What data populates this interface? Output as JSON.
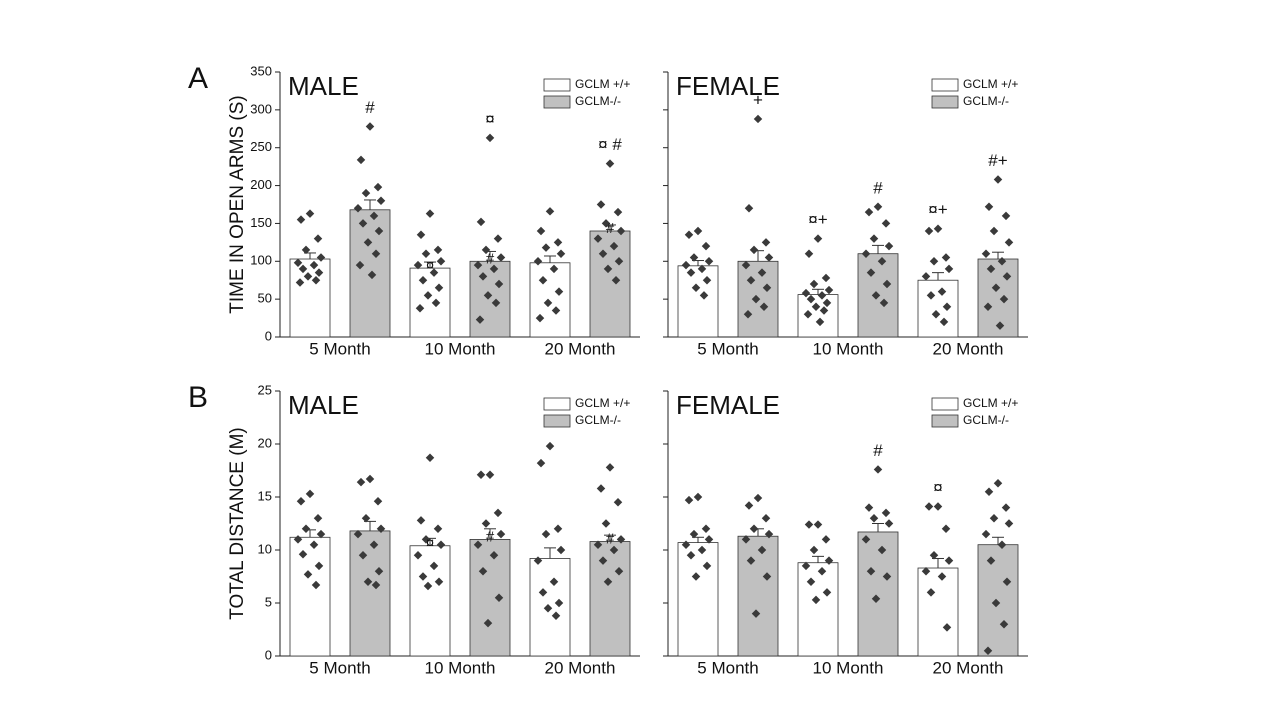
{
  "chart_data": [
    {
      "type": "bar",
      "panel_label": "A",
      "title": "MALE",
      "ylabel": "TIME IN OPEN ARMS (S)",
      "categories": [
        "5 Month",
        "10 Month",
        "20 Month"
      ],
      "ylim": [
        0,
        350
      ],
      "yticks": [
        0,
        50,
        100,
        150,
        200,
        250,
        300,
        350
      ],
      "ytick_labels": true,
      "series": [
        {
          "name": "GCLM +/+",
          "color": "#ffffff",
          "values": [
            103,
            91,
            98
          ],
          "errors": [
            8,
            8,
            9
          ],
          "points": [
            [
              163,
              155,
              130,
              115,
              105,
              98,
              95,
              90,
              85,
              80,
              75,
              72
            ],
            [
              163,
              135,
              115,
              110,
              100,
              95,
              85,
              75,
              65,
              55,
              45,
              38
            ],
            [
              166,
              140,
              125,
              118,
              110,
              100,
              90,
              75,
              60,
              45,
              35,
              25
            ]
          ],
          "annotations": [
            null,
            null,
            null
          ],
          "inner_annotations": [
            null,
            "¤",
            null
          ]
        },
        {
          "name": "GCLM-/-",
          "color": "#c0c0c0",
          "values": [
            168,
            100,
            140
          ],
          "errors": [
            13,
            13,
            8
          ],
          "points": [
            [
              278,
              234,
              198,
              190,
              180,
              170,
              160,
              150,
              140,
              125,
              110,
              95,
              82
            ],
            [
              263,
              152,
              130,
              115,
              105,
              95,
              90,
              80,
              70,
              55,
              45,
              23
            ],
            [
              229,
              175,
              165,
              150,
              140,
              130,
              120,
              110,
              100,
              90,
              75
            ]
          ],
          "annotations": [
            "#",
            "¤",
            "¤ #"
          ],
          "inner_annotations": [
            null,
            "#",
            "#"
          ]
        }
      ]
    },
    {
      "type": "bar",
      "title": "FEMALE",
      "categories": [
        "5 Month",
        "10 Month",
        "20 Month"
      ],
      "ylim": [
        0,
        350
      ],
      "yticks": [
        0,
        50,
        100,
        150,
        200,
        250,
        300,
        350
      ],
      "ytick_labels": false,
      "series": [
        {
          "name": "GCLM +/+",
          "color": "#ffffff",
          "values": [
            94,
            56,
            75
          ],
          "errors": [
            7,
            7,
            10
          ],
          "points": [
            [
              140,
              135,
              120,
              105,
              100,
              95,
              90,
              85,
              75,
              65,
              55
            ],
            [
              130,
              110,
              78,
              70,
              62,
              58,
              55,
              50,
              45,
              40,
              35,
              30,
              20
            ],
            [
              143,
              140,
              105,
              100,
              90,
              80,
              60,
              55,
              40,
              30,
              20
            ]
          ],
          "annotations": [
            null,
            "¤+",
            "¤+"
          ],
          "inner_annotations": [
            null,
            null,
            null
          ]
        },
        {
          "name": "GCLM-/-",
          "color": "#c0c0c0",
          "values": [
            100,
            110,
            103
          ],
          "errors": [
            14,
            11,
            9
          ],
          "points": [
            [
              288,
              170,
              125,
              115,
              105,
              95,
              85,
              75,
              65,
              50,
              40,
              30
            ],
            [
              172,
              165,
              150,
              130,
              120,
              110,
              100,
              85,
              70,
              55,
              45
            ],
            [
              208,
              172,
              160,
              140,
              125,
              110,
              100,
              90,
              80,
              65,
              50,
              40,
              15
            ]
          ],
          "annotations": [
            "+",
            "#",
            "#+"
          ],
          "inner_annotations": [
            null,
            null,
            null
          ]
        }
      ]
    },
    {
      "type": "bar",
      "panel_label": "B",
      "title": "MALE",
      "ylabel": "TOTAL DISTANCE (M)",
      "categories": [
        "5 Month",
        "10 Month",
        "20 Month"
      ],
      "ylim": [
        0,
        25
      ],
      "yticks": [
        0,
        5,
        10,
        15,
        20,
        25
      ],
      "ytick_labels": true,
      "series": [
        {
          "name": "GCLM +/+",
          "color": "#ffffff",
          "values": [
            11.2,
            10.4,
            9.2
          ],
          "errors": [
            0.7,
            0.7,
            1
          ],
          "points": [
            [
              15.3,
              14.6,
              13,
              12,
              11.5,
              11,
              10.5,
              9.6,
              8.5,
              7.7,
              6.7
            ],
            [
              18.7,
              12.8,
              12,
              11,
              10.5,
              9.5,
              8.5,
              7.5,
              7,
              6.6
            ],
            [
              19.8,
              18.2,
              12,
              11.5,
              10,
              9,
              7,
              6,
              5,
              4.5,
              3.8
            ]
          ],
          "annotations": [
            null,
            null,
            null
          ],
          "inner_annotations": [
            null,
            "¤",
            null
          ]
        },
        {
          "name": "GCLM-/-",
          "color": "#c0c0c0",
          "values": [
            11.8,
            11,
            10.8
          ],
          "errors": [
            0.9,
            1,
            0.6
          ],
          "points": [
            [
              16.7,
              16.4,
              14.6,
              13,
              12,
              11.5,
              10.5,
              9.5,
              8,
              7,
              6.7
            ],
            [
              17.1,
              17.1,
              13.5,
              12.5,
              11.5,
              10.5,
              9.5,
              8,
              5.5,
              3.1
            ],
            [
              17.8,
              15.8,
              14.5,
              12.5,
              11,
              10.5,
              10,
              9,
              8,
              7
            ]
          ],
          "annotations": [
            null,
            null,
            null
          ],
          "inner_annotations": [
            null,
            "#",
            "#"
          ]
        }
      ]
    },
    {
      "type": "bar",
      "title": "FEMALE",
      "categories": [
        "5 Month",
        "10 Month",
        "20 Month"
      ],
      "ylim": [
        0,
        25
      ],
      "yticks": [
        0,
        5,
        10,
        15,
        20,
        25
      ],
      "ytick_labels": false,
      "series": [
        {
          "name": "GCLM +/+",
          "color": "#ffffff",
          "values": [
            10.7,
            8.8,
            8.3
          ],
          "errors": [
            0.5,
            0.6,
            0.9
          ],
          "points": [
            [
              15,
              14.7,
              12,
              11.5,
              11,
              10.5,
              10,
              9.5,
              8.5,
              7.5
            ],
            [
              12.4,
              12.4,
              11,
              10,
              9,
              8.5,
              8,
              7,
              6,
              5.3
            ],
            [
              14.1,
              14.1,
              12,
              9.5,
              9,
              8,
              7.5,
              6,
              2.7
            ]
          ],
          "annotations": [
            null,
            null,
            "¤"
          ],
          "inner_annotations": [
            null,
            null,
            null
          ]
        },
        {
          "name": "GCLM-/-",
          "color": "#c0c0c0",
          "values": [
            11.3,
            11.7,
            10.5
          ],
          "errors": [
            0.7,
            0.8,
            0.7
          ],
          "points": [
            [
              14.9,
              14.2,
              13,
              12,
              11.5,
              11,
              10,
              9,
              7.5,
              4
            ],
            [
              17.6,
              14,
              13.5,
              13,
              12.5,
              11,
              10,
              8,
              7.5,
              5.4
            ],
            [
              16.3,
              15.5,
              14,
              13,
              12.5,
              11.5,
              10.5,
              9,
              7,
              5,
              3,
              0.5
            ]
          ],
          "annotations": [
            null,
            "#",
            null
          ],
          "inner_annotations": [
            null,
            null,
            null
          ]
        }
      ]
    }
  ]
}
